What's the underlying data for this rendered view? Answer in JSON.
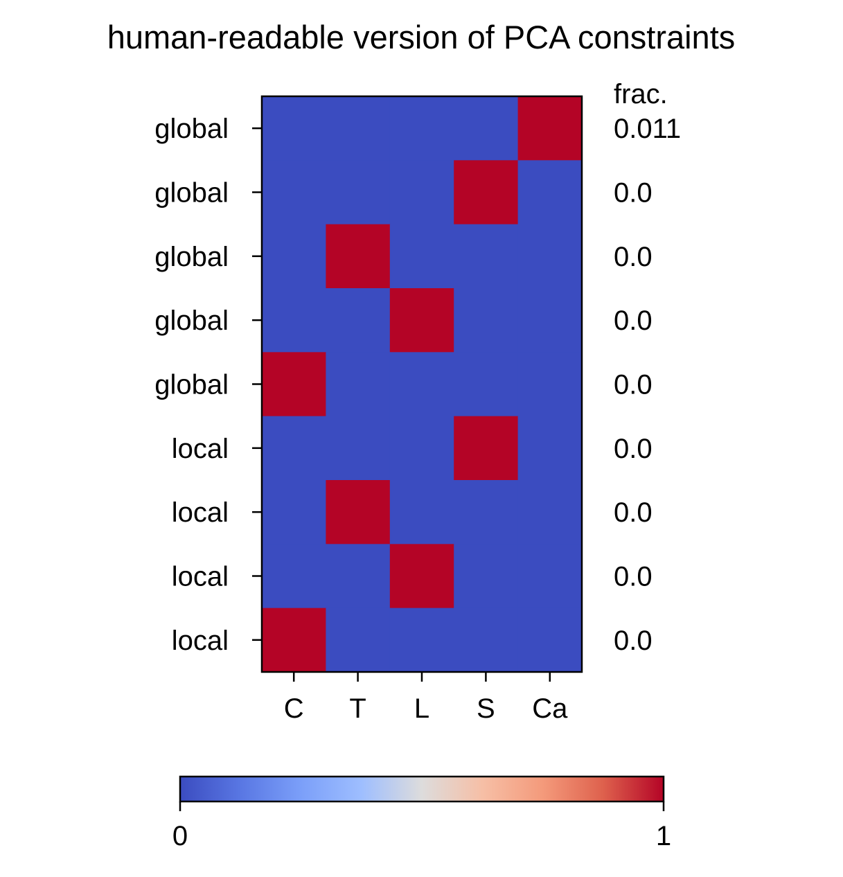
{
  "chart_data": {
    "type": "heatmap",
    "title": "human-readable version of PCA constraints",
    "x_labels": [
      "C",
      "T",
      "L",
      "S",
      "Ca"
    ],
    "y_labels": [
      "global",
      "global",
      "global",
      "global",
      "global",
      "local",
      "local",
      "local",
      "local"
    ],
    "values": [
      [
        0,
        0,
        0,
        0,
        1
      ],
      [
        0,
        0,
        0,
        1,
        0
      ],
      [
        0,
        1,
        0,
        0,
        0
      ],
      [
        0,
        0,
        1,
        0,
        0
      ],
      [
        1,
        0,
        0,
        0,
        0
      ],
      [
        0,
        0,
        0,
        1,
        0
      ],
      [
        0,
        1,
        0,
        0,
        0
      ],
      [
        0,
        0,
        1,
        0,
        0
      ],
      [
        1,
        0,
        0,
        0,
        0
      ]
    ],
    "right_column_header": "frac.",
    "right_column_values": [
      "0.011",
      "0.0",
      "0.0",
      "0.0",
      "0.0",
      "0.0",
      "0.0",
      "0.0",
      "0.0"
    ],
    "colormap": "coolwarm",
    "color_low": "#3b4cc0",
    "color_high": "#b40426",
    "colorbar": {
      "orientation": "horizontal",
      "range": [
        0,
        1
      ],
      "tick_labels": [
        "0",
        "1"
      ]
    }
  }
}
